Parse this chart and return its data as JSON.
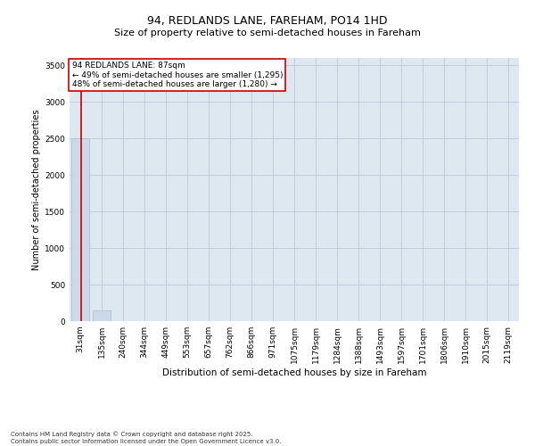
{
  "title_line1": "94, REDLANDS LANE, FAREHAM, PO14 1HD",
  "title_line2": "Size of property relative to semi-detached houses in Fareham",
  "xlabel": "Distribution of semi-detached houses by size in Fareham",
  "ylabel": "Number of semi-detached properties",
  "footer_line1": "Contains HM Land Registry data © Crown copyright and database right 2025.",
  "footer_line2": "Contains public sector information licensed under the Open Government Licence v3.0.",
  "annotation_line1": "94 REDLANDS LANE: 87sqm",
  "annotation_line2": "← 49% of semi-detached houses are smaller (1,295)",
  "annotation_line3": "48% of semi-detached houses are larger (1,280) →",
  "bar_labels": [
    "31sqm",
    "135sqm",
    "240sqm",
    "344sqm",
    "449sqm",
    "553sqm",
    "657sqm",
    "762sqm",
    "866sqm",
    "971sqm",
    "1075sqm",
    "1179sqm",
    "1284sqm",
    "1388sqm",
    "1493sqm",
    "1597sqm",
    "1701sqm",
    "1806sqm",
    "1910sqm",
    "2015sqm",
    "2119sqm"
  ],
  "bar_values": [
    2500,
    150,
    0,
    0,
    0,
    0,
    0,
    0,
    0,
    0,
    0,
    0,
    0,
    0,
    0,
    0,
    0,
    0,
    0,
    0,
    0
  ],
  "bar_color": "#ccd9e8",
  "bar_edge_color": "#aabccc",
  "marker_color": "#cc0000",
  "ylim": [
    0,
    3600
  ],
  "yticks": [
    0,
    500,
    1000,
    1500,
    2000,
    2500,
    3000,
    3500
  ],
  "grid_color": "#bcc8d8",
  "bg_color": "#dde8f0",
  "title1_fontsize": 9,
  "title2_fontsize": 8,
  "ylabel_fontsize": 7,
  "xlabel_fontsize": 7.5,
  "tick_fontsize": 6.5,
  "annot_fontsize": 6.5,
  "footer_fontsize": 5
}
